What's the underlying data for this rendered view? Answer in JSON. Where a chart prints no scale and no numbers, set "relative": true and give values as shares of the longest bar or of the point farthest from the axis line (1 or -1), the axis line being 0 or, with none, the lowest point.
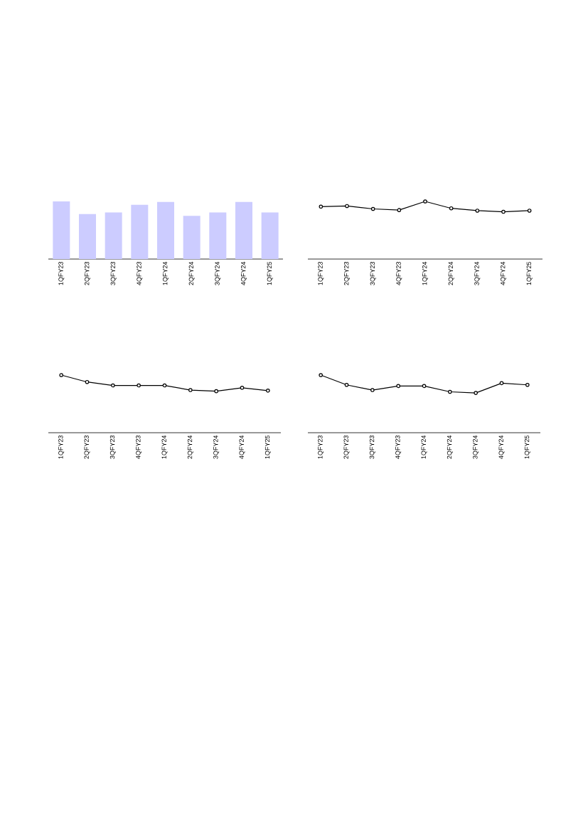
{
  "chart_data": [
    {
      "type": "bar",
      "categories": [
        "1QFY23",
        "2QFY23",
        "3QFY23",
        "4QFY23",
        "1QFY24",
        "2QFY24",
        "3QFY24",
        "4QFY24",
        "1QFY25"
      ],
      "values": [
        1,
        0.78,
        0.81,
        0.94,
        0.99,
        0.75,
        0.81,
        0.99,
        0.81
      ],
      "color": "#ccccff",
      "relative": true
    },
    {
      "type": "line",
      "categories": [
        "1QFY23",
        "2QFY23",
        "3QFY23",
        "4QFY23",
        "1QFY24",
        "2QFY24",
        "3QFY24",
        "4QFY24",
        "1QFY25"
      ],
      "series": [
        {
          "color": "#000000",
          "values": [
            0.91,
            0.92,
            0.87,
            0.85,
            1,
            0.88,
            0.84,
            0.82,
            0.84
          ]
        }
      ],
      "relative": true,
      "marker": "circle"
    },
    {
      "type": "line",
      "categories": [
        "1QFY23",
        "2QFY23",
        "3QFY23",
        "4QFY23",
        "1QFY24",
        "2QFY24",
        "3QFY24",
        "4QFY24",
        "1QFY25"
      ],
      "series": [
        {
          "color": "#000000",
          "values": [
            1,
            0.88,
            0.82,
            0.82,
            0.82,
            0.74,
            0.72,
            0.78,
            0.73
          ]
        }
      ],
      "relative": true,
      "marker": "circle"
    },
    {
      "type": "line",
      "categories": [
        "1QFY23",
        "2QFY23",
        "3QFY23",
        "4QFY23",
        "1QFY24",
        "2QFY24",
        "3QFY24",
        "4QFY24",
        "1QFY25"
      ],
      "series": [
        {
          "color": "#000000",
          "values": [
            1,
            0.83,
            0.74,
            0.81,
            0.81,
            0.71,
            0.69,
            0.86,
            0.83
          ]
        }
      ],
      "relative": true,
      "marker": "circle"
    }
  ]
}
